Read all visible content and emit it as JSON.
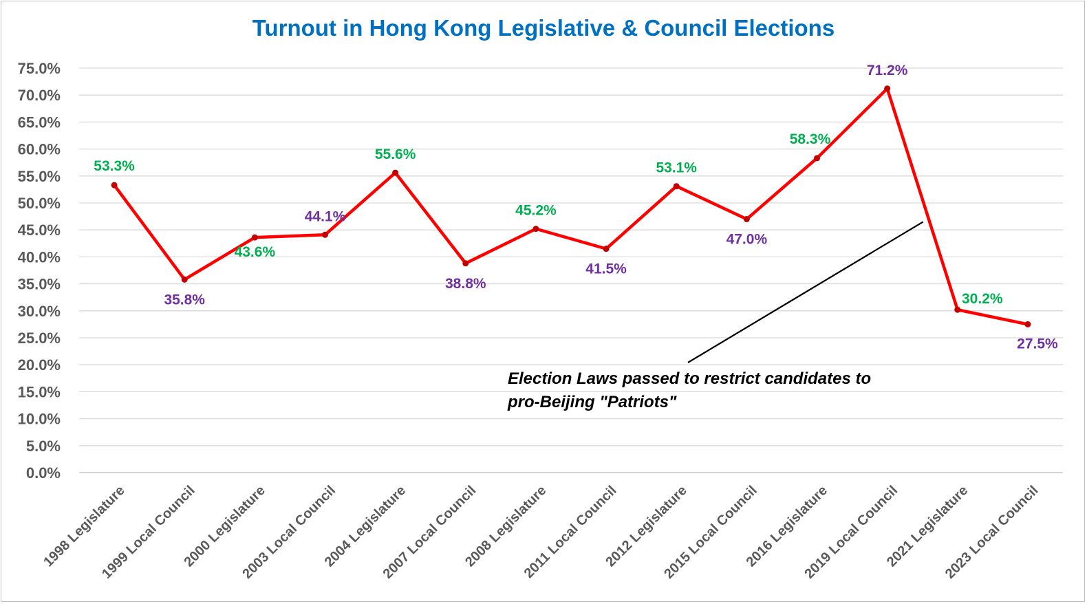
{
  "chart_data": {
    "type": "line",
    "title": "Turnout in Hong Kong Legislative & Council Elections",
    "categories": [
      "1998 Legislature",
      "1999 Local Council",
      "2000 Legislature",
      "2003 Local Council",
      "2004 Legislature",
      "2007 Local Council",
      "2008 Legislature",
      "2011 Local Council",
      "2012 Legislature",
      "2015 Local Council",
      "2016 Legislature",
      "2019 Local Council",
      "2021 Legislature",
      "2023 Local Council"
    ],
    "values": [
      53.3,
      35.8,
      43.6,
      44.1,
      55.6,
      38.8,
      45.2,
      41.5,
      53.1,
      47.0,
      58.3,
      71.2,
      30.2,
      27.5
    ],
    "data_labels": [
      "53.3%",
      "35.8%",
      "43.6%",
      "44.1%",
      "55.6%",
      "38.8%",
      "45.2%",
      "41.5%",
      "53.1%",
      "47.0%",
      "58.3%",
      "71.2%",
      "30.2%",
      "27.5%"
    ],
    "label_colors": [
      "#00b050",
      "#7030a0",
      "#00b050",
      "#7030a0",
      "#00b050",
      "#7030a0",
      "#00b050",
      "#7030a0",
      "#00b050",
      "#7030a0",
      "#00b050",
      "#7030a0",
      "#00b050",
      "#7030a0"
    ],
    "y_ticks": [
      "0.0%",
      "5.0%",
      "10.0%",
      "15.0%",
      "20.0%",
      "25.0%",
      "30.0%",
      "35.0%",
      "40.0%",
      "45.0%",
      "50.0%",
      "55.0%",
      "60.0%",
      "65.0%",
      "70.0%",
      "75.0%"
    ],
    "ylim": [
      0,
      75
    ],
    "xlabel": "",
    "ylabel": "",
    "grid": true,
    "line_color": "#ff0000",
    "marker_color": "#c00000",
    "annotation": {
      "lines": [
        "Election Laws passed to restrict candidates to",
        "pro-Beijing \"Patriots\""
      ],
      "points_to": "2021 Legislature"
    }
  }
}
